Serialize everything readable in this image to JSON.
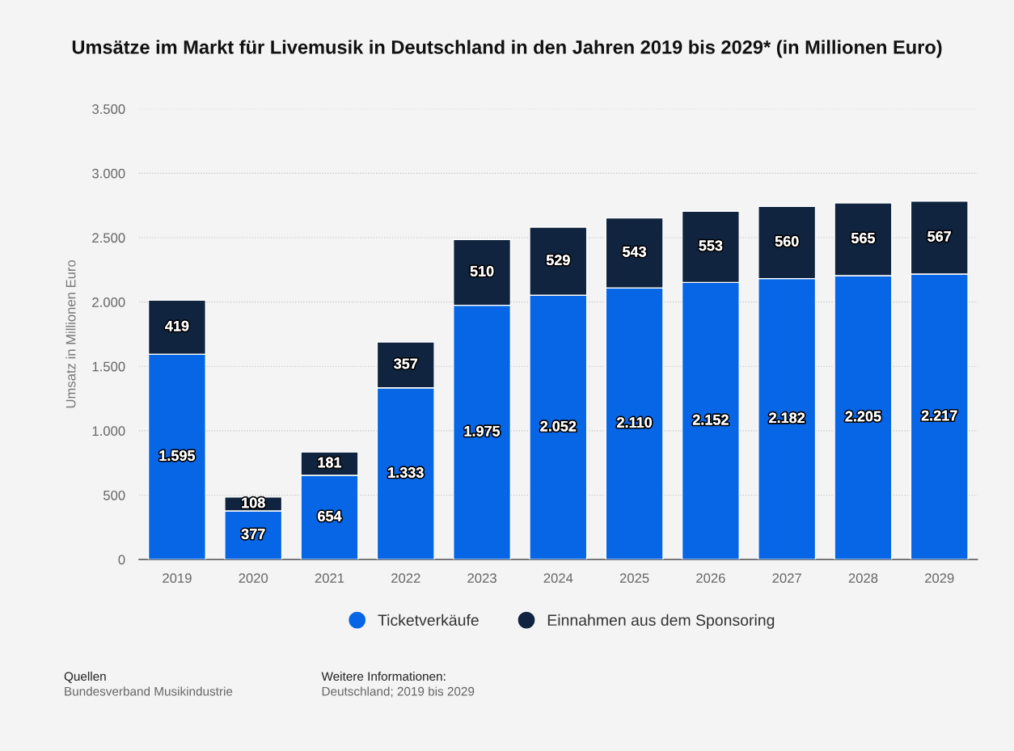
{
  "chart_data": {
    "type": "bar",
    "title": "Umsätze im Markt für Livemusik in Deutschland in den Jahren 2019 bis 2029* (in Millionen Euro)",
    "ylabel": "Umsatz in Millionen Euro",
    "categories": [
      "2019",
      "2020",
      "2021",
      "2022",
      "2023",
      "2024",
      "2025",
      "2026",
      "2027",
      "2028",
      "2029"
    ],
    "stacked": true,
    "series": [
      {
        "name": "Ticketverkäufe",
        "color": "#0766e6",
        "values": [
          1595,
          377,
          654,
          1333,
          1975,
          2052,
          2110,
          2152,
          2182,
          2205,
          2217
        ],
        "value_labels": [
          "1.595",
          "377",
          "654",
          "1.333",
          "1.975",
          "2.052",
          "2.110",
          "2.152",
          "2.182",
          "2.205",
          "2.217"
        ]
      },
      {
        "name": "Einnahmen aus dem Sponsoring",
        "color": "#10243f",
        "values": [
          419,
          108,
          181,
          357,
          510,
          529,
          543,
          553,
          560,
          565,
          567
        ],
        "value_labels": [
          "419",
          "108",
          "181",
          "357",
          "510",
          "529",
          "543",
          "553",
          "560",
          "565",
          "567"
        ]
      }
    ],
    "ylim": [
      0,
      3500
    ],
    "yticks": [
      0,
      500,
      {
        "value": 1000,
        "label": "1.000"
      },
      {
        "value": 1500,
        "label": "1.500"
      },
      {
        "value": 2000,
        "label": "2.000"
      },
      {
        "value": 2500,
        "label": "2.500"
      },
      {
        "value": 3000,
        "label": "3.000"
      },
      {
        "value": 3500,
        "label": "3.500"
      }
    ],
    "grid": "y",
    "legend": "bottom",
    "annotations": [
      "Quellen",
      "Bundesverband Musikindustrie",
      "Weitere Informationen:",
      "Deutschland; 2019 bis 2029"
    ]
  }
}
